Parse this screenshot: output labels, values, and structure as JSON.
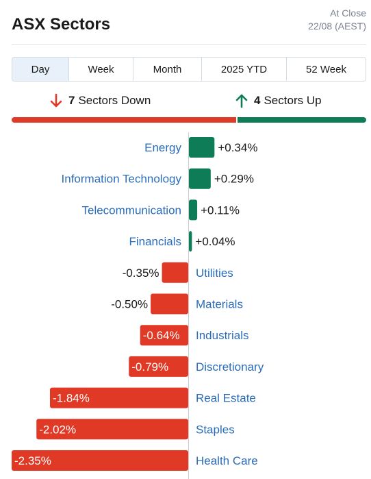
{
  "header": {
    "title": "ASX Sectors",
    "status": "At Close",
    "date": "22/08 (AEST)"
  },
  "tabs": [
    {
      "label": "Day",
      "active": true
    },
    {
      "label": "Week",
      "active": false
    },
    {
      "label": "Month",
      "active": false
    },
    {
      "label": "2025 YTD",
      "active": false
    },
    {
      "label": "52 Week",
      "active": false
    }
  ],
  "summary": {
    "down_count": "7",
    "down_text": "Sectors Down",
    "up_count": "4",
    "up_text": "Sectors Up",
    "down_color": "#e03a26",
    "up_color": "#0e7c56"
  },
  "chart_data": {
    "type": "bar",
    "orientation": "horizontal",
    "categories": [
      "Energy",
      "Information Technology",
      "Telecommunication",
      "Financials",
      "Utilities",
      "Materials",
      "Industrials",
      "Discretionary",
      "Real Estate",
      "Staples",
      "Health Care"
    ],
    "values": [
      0.34,
      0.29,
      0.11,
      0.04,
      -0.35,
      -0.5,
      -0.64,
      -0.79,
      -1.84,
      -2.02,
      -2.35
    ],
    "value_labels": [
      "+0.34%",
      "+0.29%",
      "+0.11%",
      "+0.04%",
      "-0.35%",
      "-0.50%",
      "-0.64%",
      "-0.79%",
      "-1.84%",
      "-2.02%",
      "-2.35%"
    ],
    "unit": "%",
    "positive_color": "#0e7c56",
    "negative_color": "#e03a26",
    "label_color": "#2a6cb8"
  }
}
